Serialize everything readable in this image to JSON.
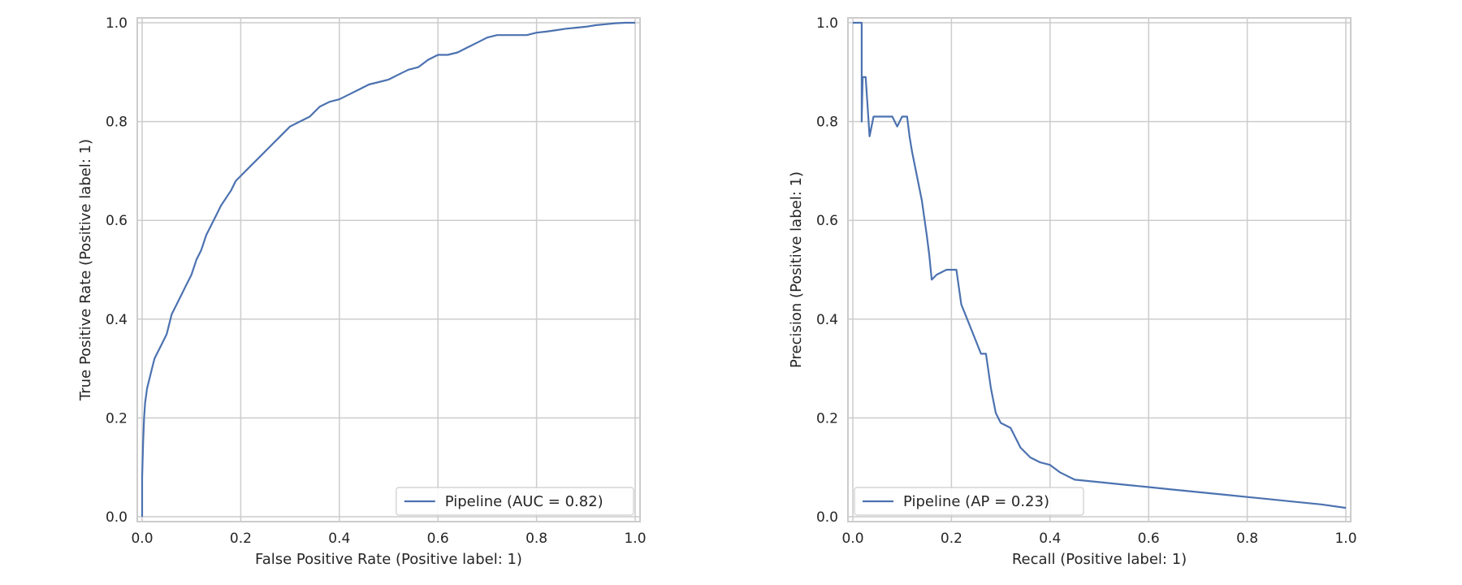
{
  "chart_data": [
    {
      "type": "line",
      "name": "roc-curve",
      "xlabel": "False Positive Rate (Positive label: 1)",
      "ylabel": "True Positive Rate (Positive label: 1)",
      "xlim": [
        0.0,
        1.0
      ],
      "ylim": [
        0.0,
        1.0
      ],
      "xticks": [
        "0.0",
        "0.2",
        "0.4",
        "0.6",
        "0.8",
        "1.0"
      ],
      "yticks": [
        "0.0",
        "0.2",
        "0.4",
        "0.6",
        "0.8",
        "1.0"
      ],
      "grid": true,
      "legend_position": "lower-right",
      "color": "#4c72b0",
      "series": [
        {
          "name": "Pipeline (AUC = 0.82)",
          "x": [
            0.0,
            0.0,
            0.002,
            0.004,
            0.006,
            0.01,
            0.015,
            0.02,
            0.025,
            0.03,
            0.04,
            0.05,
            0.06,
            0.07,
            0.08,
            0.09,
            0.1,
            0.11,
            0.12,
            0.13,
            0.14,
            0.15,
            0.16,
            0.17,
            0.18,
            0.19,
            0.2,
            0.22,
            0.24,
            0.26,
            0.28,
            0.3,
            0.32,
            0.34,
            0.36,
            0.38,
            0.4,
            0.42,
            0.44,
            0.46,
            0.48,
            0.5,
            0.52,
            0.54,
            0.56,
            0.58,
            0.6,
            0.62,
            0.64,
            0.66,
            0.68,
            0.7,
            0.72,
            0.74,
            0.76,
            0.78,
            0.8,
            0.82,
            0.84,
            0.86,
            0.88,
            0.9,
            0.92,
            0.94,
            0.96,
            0.98,
            1.0
          ],
          "y": [
            0.0,
            0.08,
            0.15,
            0.2,
            0.23,
            0.26,
            0.28,
            0.3,
            0.32,
            0.33,
            0.35,
            0.37,
            0.41,
            0.43,
            0.45,
            0.47,
            0.49,
            0.52,
            0.54,
            0.57,
            0.59,
            0.61,
            0.63,
            0.645,
            0.66,
            0.68,
            0.69,
            0.71,
            0.73,
            0.75,
            0.77,
            0.79,
            0.8,
            0.81,
            0.83,
            0.84,
            0.845,
            0.855,
            0.865,
            0.875,
            0.88,
            0.885,
            0.895,
            0.905,
            0.91,
            0.925,
            0.935,
            0.935,
            0.94,
            0.95,
            0.96,
            0.97,
            0.975,
            0.975,
            0.975,
            0.975,
            0.98,
            0.982,
            0.985,
            0.988,
            0.99,
            0.992,
            0.995,
            0.997,
            0.999,
            1.0,
            1.0
          ]
        }
      ]
    },
    {
      "type": "line",
      "name": "precision-recall-curve",
      "xlabel": "Recall (Positive label: 1)",
      "ylabel": "Precision (Positive label: 1)",
      "xlim": [
        0.0,
        1.0
      ],
      "ylim": [
        0.0,
        1.0
      ],
      "xticks": [
        "0.0",
        "0.2",
        "0.4",
        "0.6",
        "0.8",
        "1.0"
      ],
      "yticks": [
        "0.0",
        "0.2",
        "0.4",
        "0.6",
        "0.8",
        "1.0"
      ],
      "grid": true,
      "legend_position": "lower-left",
      "color": "#4c72b0",
      "series": [
        {
          "name": "Pipeline (AP = 0.23)",
          "x": [
            0.0,
            0.018,
            0.018,
            0.02,
            0.022,
            0.026,
            0.034,
            0.042,
            0.06,
            0.08,
            0.09,
            0.1,
            0.11,
            0.115,
            0.12,
            0.13,
            0.14,
            0.15,
            0.155,
            0.16,
            0.17,
            0.19,
            0.21,
            0.22,
            0.24,
            0.26,
            0.27,
            0.28,
            0.29,
            0.3,
            0.32,
            0.34,
            0.36,
            0.38,
            0.4,
            0.42,
            0.45,
            0.5,
            0.55,
            0.6,
            0.65,
            0.7,
            0.75,
            0.8,
            0.85,
            0.9,
            0.95,
            1.0
          ],
          "y": [
            1.0,
            1.0,
            0.8,
            0.89,
            0.89,
            0.89,
            0.77,
            0.81,
            0.81,
            0.81,
            0.79,
            0.81,
            0.81,
            0.77,
            0.74,
            0.69,
            0.64,
            0.57,
            0.53,
            0.48,
            0.49,
            0.5,
            0.5,
            0.43,
            0.38,
            0.33,
            0.33,
            0.26,
            0.21,
            0.19,
            0.18,
            0.14,
            0.12,
            0.11,
            0.105,
            0.09,
            0.075,
            0.07,
            0.065,
            0.06,
            0.055,
            0.05,
            0.045,
            0.04,
            0.035,
            0.03,
            0.025,
            0.018
          ]
        }
      ]
    }
  ]
}
